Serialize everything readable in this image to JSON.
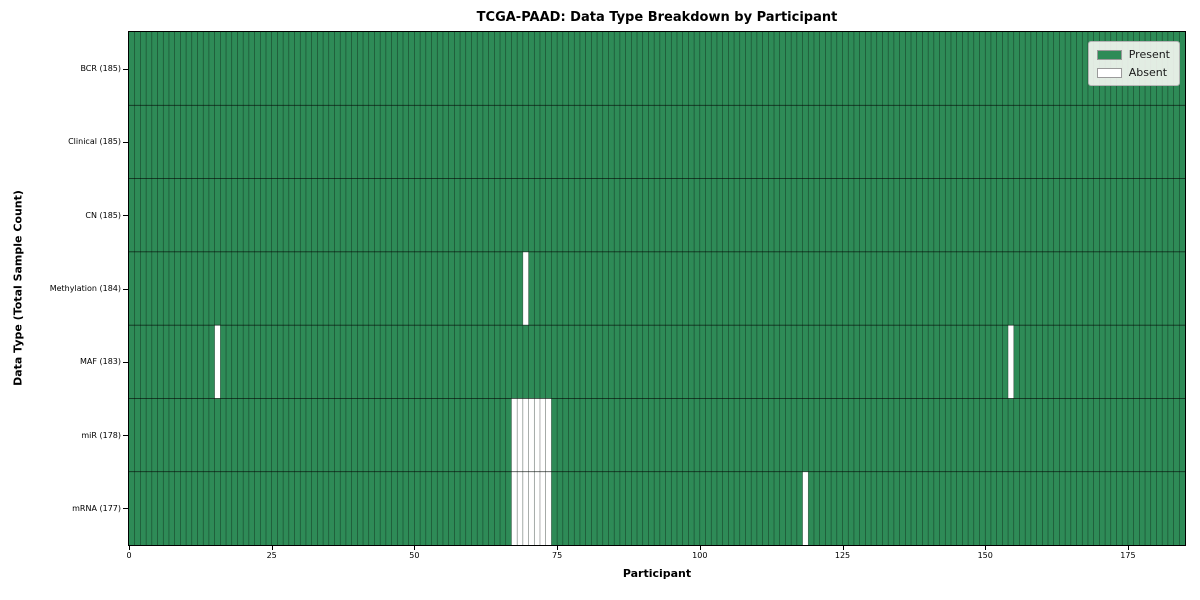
{
  "chart_data": {
    "type": "heatmap",
    "title": "TCGA-PAAD: Data Type Breakdown by Participant",
    "xlabel": "Participant",
    "ylabel": "Data Type (Total Sample Count)",
    "x_range": [
      0,
      185
    ],
    "n_participants": 185,
    "x_ticks": [
      0,
      25,
      50,
      75,
      100,
      125,
      150,
      175
    ],
    "x_tick_labels": [
      "0",
      "25",
      "50",
      "75",
      "100",
      "125",
      "150",
      "175"
    ],
    "grid": false,
    "legend_position": "upper right",
    "rows": [
      {
        "label": "BCR (185)",
        "name": "BCR",
        "total_sample_count": 185,
        "absent_participants": []
      },
      {
        "label": "Clinical (185)",
        "name": "Clinical",
        "total_sample_count": 185,
        "absent_participants": []
      },
      {
        "label": "CN (185)",
        "name": "CN",
        "total_sample_count": 185,
        "absent_participants": []
      },
      {
        "label": "Methylation (184)",
        "name": "Methylation",
        "total_sample_count": 184,
        "absent_participants": [
          69
        ]
      },
      {
        "label": "MAF (183)",
        "name": "MAF",
        "total_sample_count": 183,
        "absent_participants": [
          15,
          154
        ]
      },
      {
        "label": "miR (178)",
        "name": "miR",
        "total_sample_count": 178,
        "absent_participants": [
          67,
          68,
          69,
          70,
          71,
          72,
          73
        ]
      },
      {
        "label": "mRNA (177)",
        "name": "mRNA",
        "total_sample_count": 177,
        "absent_participants": [
          67,
          68,
          69,
          70,
          71,
          72,
          73,
          118
        ]
      }
    ],
    "legend": [
      {
        "label": "Present",
        "color": "#2e8b57"
      },
      {
        "label": "Absent",
        "color": "#ffffff"
      }
    ],
    "colors": {
      "present": "#2e8b57",
      "absent": "#ffffff",
      "cell_border": "rgba(0,0,0,0.5)",
      "row_separator": "rgba(0,0,0,0.65)",
      "spine": "#000000"
    }
  }
}
